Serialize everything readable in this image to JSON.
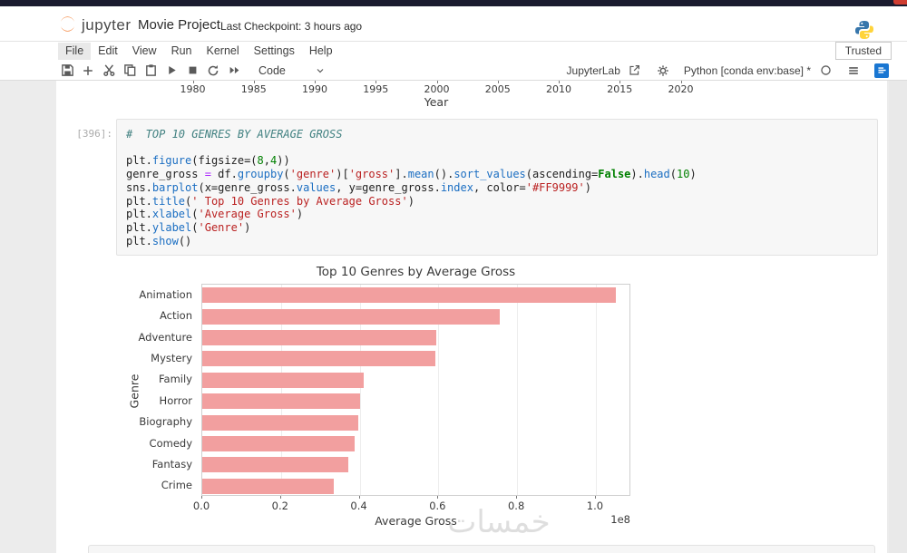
{
  "header": {
    "brand": "jupyter",
    "title": "Movie Project",
    "checkpoint": "Last Checkpoint: 3 hours ago"
  },
  "menu": {
    "items": [
      "File",
      "Edit",
      "View",
      "Run",
      "Kernel",
      "Settings",
      "Help"
    ],
    "active": "File",
    "trusted_label": "Trusted"
  },
  "toolbar": {
    "icons": [
      "save",
      "add-cell",
      "cut",
      "copy",
      "paste",
      "run",
      "stop",
      "restart",
      "fast-forward"
    ],
    "cell_type": "Code",
    "jupyterlab_label": "JupyterLab",
    "kernel_label": "Python [conda env:base] *"
  },
  "prev_output": {
    "years": [
      "1980",
      "1985",
      "1990",
      "1995",
      "2000",
      "2005",
      "2010",
      "2015",
      "2020"
    ],
    "xlabel": "Year"
  },
  "cell": {
    "execution_count": "[396]:",
    "code_lines": [
      [
        [
          "c",
          "#  TOP 10 GENRES BY AVERAGE GROSS"
        ]
      ],
      [],
      [
        [
          "p",
          "plt."
        ],
        [
          "m",
          "figure"
        ],
        [
          "p",
          "(figsize=("
        ],
        [
          "n",
          "8"
        ],
        [
          "p",
          ","
        ],
        [
          "n",
          "4"
        ],
        [
          "p",
          "))"
        ]
      ],
      [
        [
          "p",
          "genre_gross "
        ],
        [
          "o",
          "="
        ],
        [
          "p",
          " df."
        ],
        [
          "m",
          "groupby"
        ],
        [
          "p",
          "("
        ],
        [
          "s",
          "'genre'"
        ],
        [
          "p",
          ")["
        ],
        [
          "s",
          "'gross'"
        ],
        [
          "p",
          "]."
        ],
        [
          "m",
          "mean"
        ],
        [
          "p",
          "()."
        ],
        [
          "m",
          "sort_values"
        ],
        [
          "p",
          "(ascending="
        ],
        [
          "k",
          "False"
        ],
        [
          "p",
          ")."
        ],
        [
          "m",
          "head"
        ],
        [
          "p",
          "("
        ],
        [
          "n",
          "10"
        ],
        [
          "p",
          ")"
        ]
      ],
      [
        [
          "p",
          "sns."
        ],
        [
          "m",
          "barplot"
        ],
        [
          "p",
          "(x=genre_gross."
        ],
        [
          "m",
          "values"
        ],
        [
          "p",
          ", y=genre_gross."
        ],
        [
          "m",
          "index"
        ],
        [
          "p",
          ", color="
        ],
        [
          "s",
          "'#FF9999'"
        ],
        [
          "p",
          ")"
        ]
      ],
      [
        [
          "p",
          "plt."
        ],
        [
          "m",
          "title"
        ],
        [
          "p",
          "("
        ],
        [
          "s",
          "' Top 10 Genres by Average Gross'"
        ],
        [
          "p",
          ")"
        ]
      ],
      [
        [
          "p",
          "plt."
        ],
        [
          "m",
          "xlabel"
        ],
        [
          "p",
          "("
        ],
        [
          "s",
          "'Average Gross'"
        ],
        [
          "p",
          ")"
        ]
      ],
      [
        [
          "p",
          "plt."
        ],
        [
          "m",
          "ylabel"
        ],
        [
          "p",
          "("
        ],
        [
          "s",
          "'Genre'"
        ],
        [
          "p",
          ")"
        ]
      ],
      [
        [
          "p",
          "plt."
        ],
        [
          "m",
          "show"
        ],
        [
          "p",
          "()"
        ]
      ]
    ]
  },
  "chart_data": {
    "type": "bar",
    "orientation": "horizontal",
    "title": "Top 10 Genres by Average Gross",
    "xlabel": "Average Gross",
    "ylabel": "Genre",
    "x_offset_label": "1e8",
    "categories": [
      "Animation",
      "Action",
      "Adventure",
      "Mystery",
      "Family",
      "Horror",
      "Biography",
      "Comedy",
      "Fantasy",
      "Crime"
    ],
    "values_1e8": [
      1.05,
      0.755,
      0.595,
      0.592,
      0.41,
      0.402,
      0.396,
      0.386,
      0.37,
      0.335
    ],
    "xticks": [
      0.0,
      0.2,
      0.4,
      0.6,
      0.8,
      1.0
    ],
    "xlim": [
      0,
      1.09
    ],
    "bar_color": "#f29f9f",
    "grid": true,
    "legend": null
  },
  "watermark": "خمسات",
  "colors": {
    "accent_blue": "#1976d2",
    "jupyter_orange": "#f37726",
    "bar_pink": "#f29f9f",
    "top_strip": "#1a1b2f"
  }
}
